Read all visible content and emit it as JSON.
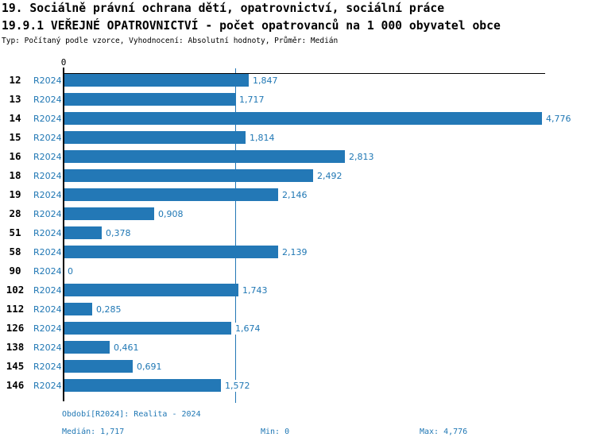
{
  "title": {
    "line1": "19. Sociálně právní ochrana dětí, opatrovnictví, sociální práce",
    "line2": "19.9.1 VEŘEJNÉ OPATROVNICTVÍ - počet opatrovanců na 1 000 obyvatel obce",
    "subtitle": "Typ: Počítaný podle vzorce, Vyhodnocení: Absolutní hodnoty, Průměr: Medián"
  },
  "colors": {
    "bar": "#2378b6",
    "median_line": "#2378b6",
    "accent_text": "#1f77b4",
    "axis": "#000000",
    "background": "#ffffff"
  },
  "chart_data": {
    "type": "bar",
    "orientation": "horizontal",
    "title": "19.9.1 VEŘEJNÉ OPATROVNICTVÍ - počet opatrovanců na 1 000 obyvatel obce",
    "categories": [
      "12",
      "13",
      "14",
      "15",
      "16",
      "18",
      "19",
      "28",
      "51",
      "58",
      "90",
      "102",
      "112",
      "126",
      "138",
      "145",
      "146"
    ],
    "series_label": "R2024",
    "values": [
      1.847,
      1.717,
      4.776,
      1.814,
      2.813,
      2.492,
      2.146,
      0.908,
      0.378,
      2.139,
      0,
      1.743,
      0.285,
      1.674,
      0.461,
      0.691,
      1.572
    ],
    "value_labels": [
      "1,847",
      "1,717",
      "4,776",
      "1,814",
      "2,813",
      "2,492",
      "2,146",
      "0,908",
      "0,378",
      "2,139",
      "0",
      "1,743",
      "0,285",
      "1,674",
      "0,461",
      "0,691",
      "1,572"
    ],
    "x_tick_labels": [
      "0"
    ],
    "axis_tick_zero": "0",
    "xlim": [
      0,
      4.81
    ],
    "median_value": 1.717,
    "grid": false,
    "legend": "none",
    "xlabel": "",
    "ylabel": ""
  },
  "footer": {
    "period": "Období[R2024]: Realita - 2024",
    "median": "Medián: 1,717",
    "min": "Min: 0",
    "max": "Max: 4,776"
  }
}
